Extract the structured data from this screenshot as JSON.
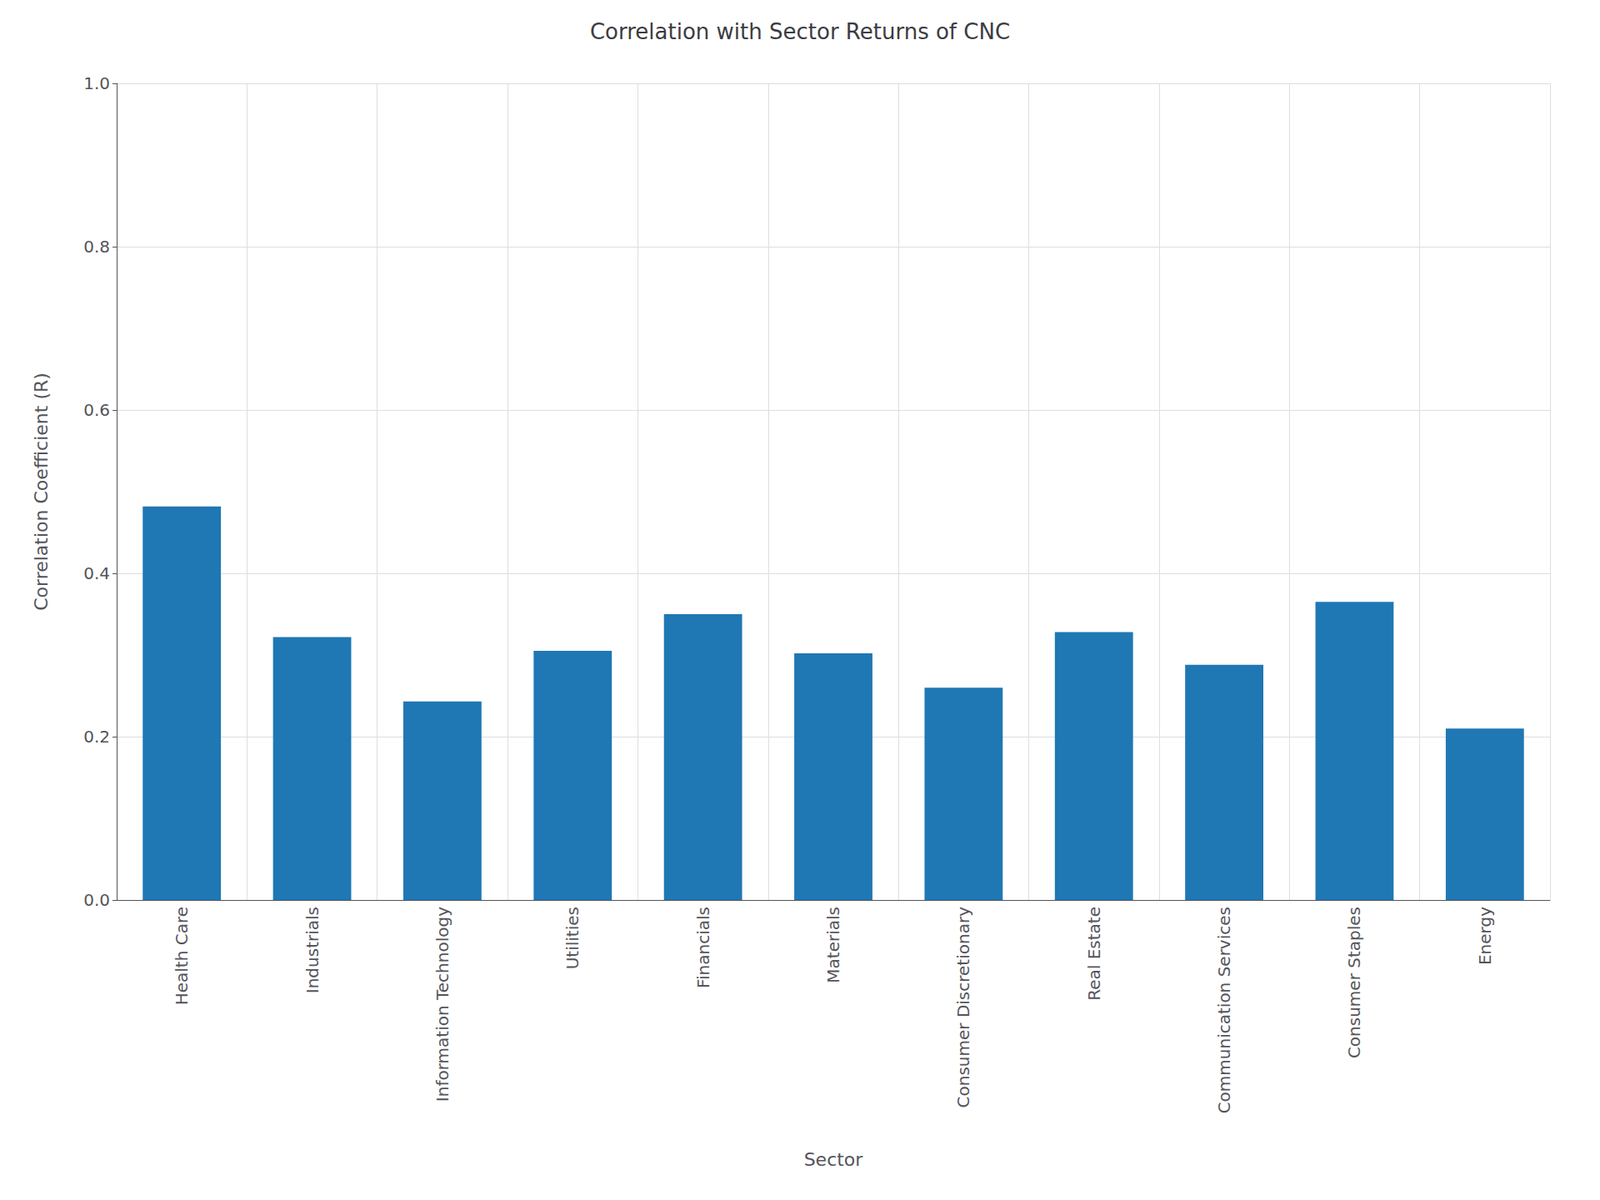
{
  "chart_data": {
    "type": "bar",
    "title": "Correlation with Sector Returns of CNC",
    "xlabel": "Sector",
    "ylabel": "Correlation Coefficient (R)",
    "categories": [
      "Health Care",
      "Industrials",
      "Information Technology",
      "Utilities",
      "Financials",
      "Materials",
      "Consumer Discretionary",
      "Real Estate",
      "Communication Services",
      "Consumer Staples",
      "Energy"
    ],
    "values": [
      0.482,
      0.322,
      0.243,
      0.305,
      0.35,
      0.302,
      0.26,
      0.328,
      0.288,
      0.365,
      0.21
    ],
    "color": "#1f77b4",
    "ylim": [
      0.0,
      1.0
    ],
    "yticks": [
      {
        "value": 0,
        "label": "0.0"
      },
      0.2,
      0.4,
      0.6,
      0.8,
      {
        "value": 1,
        "label": "1.0"
      }
    ],
    "grid": true
  }
}
